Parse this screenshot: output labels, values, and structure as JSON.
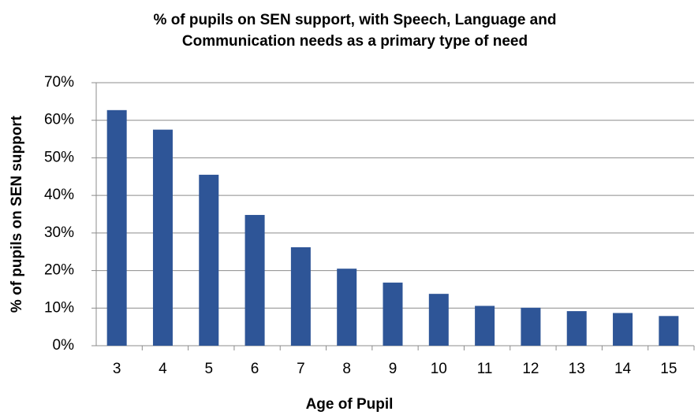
{
  "chart_data": {
    "type": "bar",
    "title": "% of pupils on SEN support, with Speech, Language and Communication needs as a primary type of need",
    "x_label": "Age of Pupil",
    "y_label": "% of pupils on SEN support",
    "categories": [
      "3",
      "4",
      "5",
      "6",
      "7",
      "8",
      "9",
      "10",
      "11",
      "12",
      "13",
      "14",
      "15"
    ],
    "values": [
      62.7,
      57.5,
      45.5,
      34.8,
      26.2,
      20.5,
      16.8,
      13.8,
      10.6,
      10.1,
      9.2,
      8.7,
      7.9
    ],
    "color": "#2e5597",
    "ylim": [
      0,
      70
    ],
    "yticks": [
      {
        "value": 0,
        "label": "0%"
      },
      {
        "value": 10,
        "label": "10%"
      },
      {
        "value": 20,
        "label": "20%"
      },
      {
        "value": 30,
        "label": "30%"
      },
      {
        "value": 40,
        "label": "40%"
      },
      {
        "value": 50,
        "label": "50%"
      },
      {
        "value": 60,
        "label": "60%"
      },
      {
        "value": 70,
        "label": "70%"
      }
    ],
    "grid": true
  }
}
